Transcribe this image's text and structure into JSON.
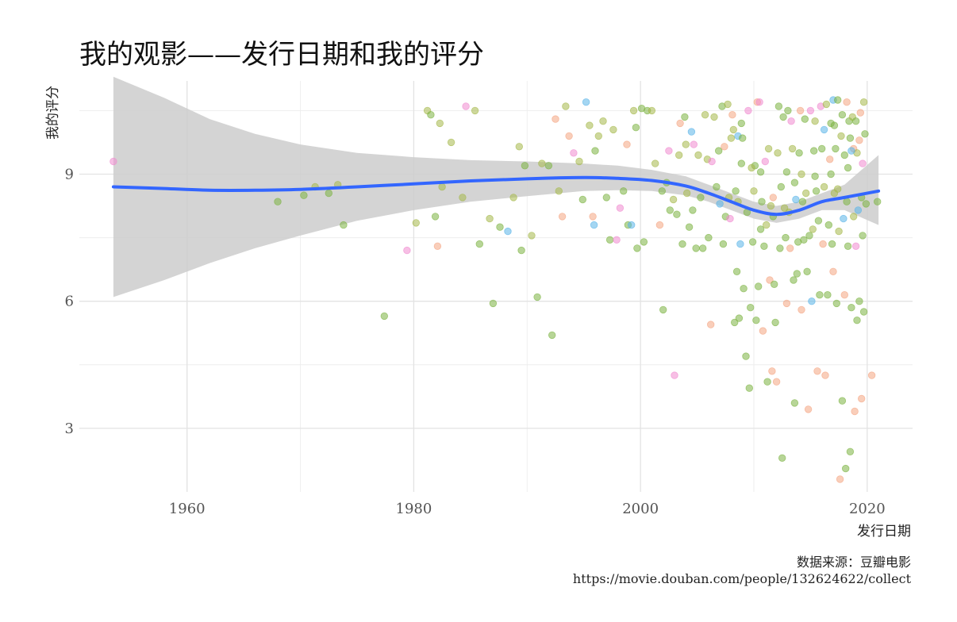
{
  "chart_data": {
    "type": "scatter",
    "title": "我的观影——发行日期和我的评分",
    "xlabel": "发行日期",
    "ylabel": "我的评分",
    "caption_lines": [
      "数据来源：豆瓣电影",
      "https://movie.douban.com/people/132624622/collect"
    ],
    "xlim": [
      1950.5,
      2024
    ],
    "ylim": [
      1.5,
      11.2
    ],
    "x_ticks": [
      1960,
      1980,
      2000,
      2020
    ],
    "y_ticks": [
      3,
      6,
      9
    ],
    "grid": true,
    "legend": "none",
    "point_palette": [
      "#7cb342",
      "#9ccc65",
      "#a5b84a",
      "#f4a582",
      "#e7a15a",
      "#f08bd0",
      "#5ab4e8",
      "#66cc99",
      "#e9a0a0"
    ],
    "smooth_color": "#3366ff",
    "ribbon_color": "#cccccc",
    "smooth": {
      "x": [
        1953.5,
        1958,
        1962,
        1966,
        1970,
        1975,
        1980,
        1985,
        1990,
        1995,
        1998,
        2001,
        2004,
        2006,
        2008,
        2010,
        2012,
        2014,
        2016,
        2018,
        2021
      ],
      "y": [
        8.7,
        8.66,
        8.62,
        8.62,
        8.64,
        8.7,
        8.77,
        8.84,
        8.89,
        8.92,
        8.9,
        8.85,
        8.72,
        8.55,
        8.35,
        8.15,
        8.05,
        8.15,
        8.35,
        8.45,
        8.6
      ],
      "lower": [
        6.1,
        6.5,
        6.9,
        7.25,
        7.55,
        7.9,
        8.15,
        8.35,
        8.48,
        8.6,
        8.62,
        8.6,
        8.5,
        8.35,
        8.15,
        7.95,
        7.85,
        7.95,
        8.15,
        8.15,
        7.8
      ],
      "upper": [
        11.3,
        10.8,
        10.3,
        9.95,
        9.7,
        9.5,
        9.4,
        9.33,
        9.3,
        9.25,
        9.2,
        9.1,
        8.95,
        8.75,
        8.55,
        8.35,
        8.25,
        8.35,
        8.55,
        8.75,
        9.45
      ]
    },
    "points": [
      [
        1953.5,
        9.3,
        5
      ],
      [
        1968,
        8.35,
        0
      ],
      [
        1970.3,
        8.5,
        0
      ],
      [
        1971.3,
        8.7,
        2
      ],
      [
        1972.5,
        8.55,
        0
      ],
      [
        1973.3,
        8.75,
        2
      ],
      [
        1973.8,
        7.8,
        0
      ],
      [
        1977.4,
        5.65,
        0
      ],
      [
        1979.4,
        7.2,
        5
      ],
      [
        1980.2,
        7.85,
        2
      ],
      [
        1981.2,
        10.5,
        2
      ],
      [
        1981.5,
        10.4,
        0
      ],
      [
        1981.9,
        8.0,
        0
      ],
      [
        1982.1,
        7.3,
        3
      ],
      [
        1982.3,
        10.2,
        2
      ],
      [
        1982.5,
        8.7,
        2
      ],
      [
        1983.3,
        9.75,
        2
      ],
      [
        1984.3,
        8.45,
        2
      ],
      [
        1984.6,
        10.6,
        5
      ],
      [
        1985.4,
        10.5,
        2
      ],
      [
        1985.8,
        7.35,
        0
      ],
      [
        1986.7,
        7.95,
        2
      ],
      [
        1987.0,
        5.95,
        0
      ],
      [
        1987.6,
        7.75,
        0
      ],
      [
        1988.3,
        7.65,
        6
      ],
      [
        1988.8,
        8.45,
        2
      ],
      [
        1989.3,
        9.65,
        2
      ],
      [
        1989.5,
        7.2,
        0
      ],
      [
        1989.8,
        9.2,
        0
      ],
      [
        1990.4,
        7.55,
        2
      ],
      [
        1990.9,
        6.1,
        0
      ],
      [
        1991.3,
        9.25,
        2
      ],
      [
        1991.9,
        9.2,
        0
      ],
      [
        1992.2,
        5.2,
        0
      ],
      [
        1992.5,
        10.3,
        3
      ],
      [
        1992.8,
        8.6,
        2
      ],
      [
        1993.1,
        8.0,
        3
      ],
      [
        1993.4,
        10.6,
        2
      ],
      [
        1993.7,
        9.9,
        3
      ],
      [
        1994.1,
        9.5,
        5
      ],
      [
        1994.6,
        9.3,
        2
      ],
      [
        1994.9,
        8.4,
        0
      ],
      [
        1995.2,
        10.7,
        6
      ],
      [
        1995.5,
        10.15,
        2
      ],
      [
        1995.8,
        8.0,
        3
      ],
      [
        1995.9,
        7.8,
        6
      ],
      [
        1996.0,
        9.55,
        0
      ],
      [
        1996.3,
        9.9,
        2
      ],
      [
        1996.7,
        10.25,
        2
      ],
      [
        1997.0,
        8.45,
        0
      ],
      [
        1997.3,
        7.45,
        0
      ],
      [
        1997.6,
        10.05,
        2
      ],
      [
        1997.9,
        7.45,
        5
      ],
      [
        1998.2,
        8.2,
        5
      ],
      [
        1998.5,
        8.6,
        0
      ],
      [
        1998.8,
        9.7,
        3
      ],
      [
        1998.9,
        7.8,
        0
      ],
      [
        1999.2,
        7.8,
        6
      ],
      [
        1999.4,
        10.5,
        2
      ],
      [
        1999.6,
        10.1,
        0
      ],
      [
        1999.7,
        7.25,
        0
      ],
      [
        2000.1,
        10.55,
        0
      ],
      [
        2000.3,
        7.4,
        0
      ],
      [
        2000.6,
        10.5,
        0
      ],
      [
        2001.0,
        10.5,
        2
      ],
      [
        2001.3,
        9.25,
        2
      ],
      [
        2001.7,
        7.8,
        3
      ],
      [
        2001.9,
        8.6,
        0
      ],
      [
        2002.0,
        5.8,
        0
      ],
      [
        2002.3,
        8.8,
        0
      ],
      [
        2002.5,
        9.55,
        5
      ],
      [
        2002.6,
        8.15,
        0
      ],
      [
        2002.9,
        8.4,
        2
      ],
      [
        2003.0,
        4.25,
        5
      ],
      [
        2003.2,
        8.05,
        0
      ],
      [
        2003.4,
        9.45,
        2
      ],
      [
        2003.5,
        10.2,
        3
      ],
      [
        2003.7,
        7.35,
        0
      ],
      [
        2003.9,
        10.35,
        0
      ],
      [
        2004.0,
        9.7,
        2
      ],
      [
        2004.1,
        8.55,
        2
      ],
      [
        2004.3,
        7.75,
        0
      ],
      [
        2004.5,
        10.0,
        6
      ],
      [
        2004.6,
        8.15,
        0
      ],
      [
        2004.7,
        9.7,
        5
      ],
      [
        2004.9,
        7.25,
        0
      ],
      [
        2005.1,
        9.45,
        2
      ],
      [
        2005.3,
        8.45,
        0
      ],
      [
        2005.5,
        7.25,
        0
      ],
      [
        2005.7,
        10.4,
        2
      ],
      [
        2005.9,
        9.35,
        2
      ],
      [
        2006.0,
        7.5,
        0
      ],
      [
        2006.2,
        5.45,
        3
      ],
      [
        2006.3,
        9.3,
        5
      ],
      [
        2006.5,
        10.35,
        2
      ],
      [
        2006.7,
        8.7,
        0
      ],
      [
        2006.9,
        9.55,
        0
      ],
      [
        2007.0,
        8.3,
        6
      ],
      [
        2007.2,
        10.6,
        0
      ],
      [
        2007.3,
        7.35,
        0
      ],
      [
        2007.4,
        9.65,
        3
      ],
      [
        2007.5,
        8.0,
        0
      ],
      [
        2007.7,
        10.65,
        2
      ],
      [
        2007.8,
        8.45,
        2
      ],
      [
        2007.9,
        7.95,
        5
      ],
      [
        2008.0,
        9.85,
        2
      ],
      [
        2008.1,
        10.4,
        3
      ],
      [
        2008.2,
        10.05,
        2
      ],
      [
        2008.3,
        5.5,
        0
      ],
      [
        2008.4,
        8.6,
        0
      ],
      [
        2008.5,
        6.7,
        0
      ],
      [
        2008.6,
        9.9,
        6
      ],
      [
        2008.6,
        8.35,
        2
      ],
      [
        2008.7,
        5.6,
        0
      ],
      [
        2008.8,
        7.35,
        6
      ],
      [
        2008.9,
        10.2,
        0
      ],
      [
        2009.0,
        9.85,
        0
      ],
      [
        2009.1,
        6.3,
        0
      ],
      [
        2009.3,
        4.7,
        0
      ],
      [
        2009.4,
        8.1,
        0
      ],
      [
        2009.5,
        10.5,
        5
      ],
      [
        2009.6,
        3.95,
        0
      ],
      [
        2009.7,
        5.85,
        0
      ],
      [
        2009.9,
        7.4,
        0
      ],
      [
        2010.0,
        8.6,
        2
      ],
      [
        2010.1,
        9.2,
        0
      ],
      [
        2010.2,
        5.55,
        0
      ],
      [
        2010.3,
        10.7,
        3
      ],
      [
        2010.4,
        6.35,
        0
      ],
      [
        2010.5,
        10.7,
        5
      ],
      [
        2010.6,
        7.7,
        0
      ],
      [
        2010.7,
        8.35,
        0
      ],
      [
        2010.8,
        5.3,
        3
      ],
      [
        2010.9,
        7.3,
        0
      ],
      [
        2011.0,
        9.3,
        5
      ],
      [
        2011.1,
        7.8,
        2
      ],
      [
        2011.2,
        4.1,
        0
      ],
      [
        2011.3,
        9.6,
        2
      ],
      [
        2011.4,
        6.5,
        3
      ],
      [
        2011.5,
        8.25,
        2
      ],
      [
        2011.6,
        4.35,
        3
      ],
      [
        2011.7,
        8.0,
        0
      ],
      [
        2011.8,
        6.4,
        0
      ],
      [
        2011.9,
        5.5,
        0
      ],
      [
        2012.0,
        4.1,
        3
      ],
      [
        2012.1,
        9.5,
        2
      ],
      [
        2012.2,
        10.6,
        0
      ],
      [
        2012.3,
        7.25,
        0
      ],
      [
        2012.4,
        8.7,
        0
      ],
      [
        2012.5,
        2.3,
        0
      ],
      [
        2012.6,
        10.35,
        0
      ],
      [
        2012.7,
        8.2,
        2
      ],
      [
        2012.8,
        7.5,
        0
      ],
      [
        2012.9,
        5.95,
        3
      ],
      [
        2013.0,
        10.5,
        0
      ],
      [
        2013.1,
        8.1,
        2
      ],
      [
        2013.2,
        7.25,
        3
      ],
      [
        2013.3,
        10.25,
        5
      ],
      [
        2013.4,
        9.6,
        2
      ],
      [
        2013.5,
        6.5,
        0
      ],
      [
        2013.6,
        3.6,
        0
      ],
      [
        2013.7,
        8.4,
        6
      ],
      [
        2013.8,
        6.65,
        0
      ],
      [
        2013.9,
        7.4,
        0
      ],
      [
        2014.0,
        9.5,
        0
      ],
      [
        2014.1,
        10.5,
        3
      ],
      [
        2014.2,
        5.8,
        3
      ],
      [
        2014.3,
        8.35,
        0
      ],
      [
        2014.4,
        7.45,
        0
      ],
      [
        2014.5,
        10.3,
        0
      ],
      [
        2014.6,
        8.55,
        2
      ],
      [
        2014.7,
        6.7,
        0
      ],
      [
        2014.8,
        3.45,
        3
      ],
      [
        2014.9,
        7.55,
        0
      ],
      [
        2015.0,
        10.5,
        5
      ],
      [
        2015.1,
        6.0,
        6
      ],
      [
        2015.2,
        7.7,
        2
      ],
      [
        2015.3,
        9.55,
        0
      ],
      [
        2015.4,
        10.25,
        2
      ],
      [
        2015.5,
        8.6,
        0
      ],
      [
        2015.6,
        4.35,
        3
      ],
      [
        2015.7,
        7.9,
        0
      ],
      [
        2015.8,
        6.15,
        0
      ],
      [
        2015.9,
        10.6,
        5
      ],
      [
        2016.0,
        9.6,
        0
      ],
      [
        2016.1,
        7.35,
        3
      ],
      [
        2016.2,
        8.7,
        2
      ],
      [
        2016.3,
        4.25,
        3
      ],
      [
        2016.4,
        10.65,
        2
      ],
      [
        2016.5,
        6.15,
        0
      ],
      [
        2016.6,
        7.8,
        0
      ],
      [
        2016.7,
        9.35,
        3
      ],
      [
        2016.8,
        10.2,
        0
      ],
      [
        2016.9,
        7.35,
        0
      ],
      [
        2017.0,
        10.75,
        6
      ],
      [
        2017.0,
        6.7,
        3
      ],
      [
        2017.1,
        8.55,
        2
      ],
      [
        2017.2,
        9.6,
        0
      ],
      [
        2017.3,
        5.95,
        0
      ],
      [
        2017.4,
        10.75,
        0
      ],
      [
        2017.5,
        7.65,
        2
      ],
      [
        2017.6,
        1.8,
        3
      ],
      [
        2017.7,
        9.9,
        2
      ],
      [
        2017.8,
        10.4,
        0
      ],
      [
        2017.8,
        3.65,
        0
      ],
      [
        2017.9,
        7.95,
        6
      ],
      [
        2018.0,
        9.45,
        0
      ],
      [
        2018.0,
        6.15,
        3
      ],
      [
        2018.1,
        2.05,
        0
      ],
      [
        2018.2,
        10.7,
        3
      ],
      [
        2018.2,
        8.35,
        0
      ],
      [
        2018.3,
        7.3,
        0
      ],
      [
        2018.4,
        10.25,
        0
      ],
      [
        2018.5,
        9.85,
        0
      ],
      [
        2018.5,
        2.45,
        0
      ],
      [
        2018.6,
        5.85,
        0
      ],
      [
        2018.7,
        10.35,
        2
      ],
      [
        2018.8,
        9.6,
        3
      ],
      [
        2018.8,
        8.0,
        2
      ],
      [
        2018.9,
        3.4,
        3
      ],
      [
        2019.0,
        10.25,
        0
      ],
      [
        2019.0,
        7.3,
        5
      ],
      [
        2019.1,
        9.5,
        2
      ],
      [
        2019.1,
        5.55,
        0
      ],
      [
        2019.2,
        8.15,
        6
      ],
      [
        2019.3,
        9.8,
        3
      ],
      [
        2019.3,
        6.0,
        0
      ],
      [
        2019.4,
        10.45,
        3
      ],
      [
        2019.5,
        3.7,
        3
      ],
      [
        2019.5,
        8.45,
        0
      ],
      [
        2019.6,
        9.25,
        5
      ],
      [
        2019.6,
        7.55,
        0
      ],
      [
        2019.7,
        10.7,
        2
      ],
      [
        2019.7,
        5.75,
        0
      ],
      [
        2019.8,
        9.95,
        0
      ],
      [
        2019.9,
        8.3,
        0
      ],
      [
        2020.4,
        4.25,
        3
      ],
      [
        2020.9,
        8.35,
        0
      ],
      [
        2016.2,
        10.05,
        6
      ],
      [
        2016.8,
        9.0,
        0
      ],
      [
        2018.3,
        9.15,
        0
      ],
      [
        2017.4,
        8.65,
        2
      ],
      [
        2015.4,
        8.95,
        0
      ],
      [
        2014.2,
        9.0,
        2
      ],
      [
        2013.6,
        8.8,
        0
      ],
      [
        2012.9,
        9.05,
        0
      ],
      [
        2011.7,
        8.45,
        3
      ],
      [
        2010.6,
        9.05,
        0
      ],
      [
        2009.8,
        9.15,
        2
      ],
      [
        2008.9,
        9.25,
        0
      ],
      [
        2018.6,
        9.55,
        6
      ],
      [
        2017.1,
        10.15,
        0
      ]
    ]
  }
}
